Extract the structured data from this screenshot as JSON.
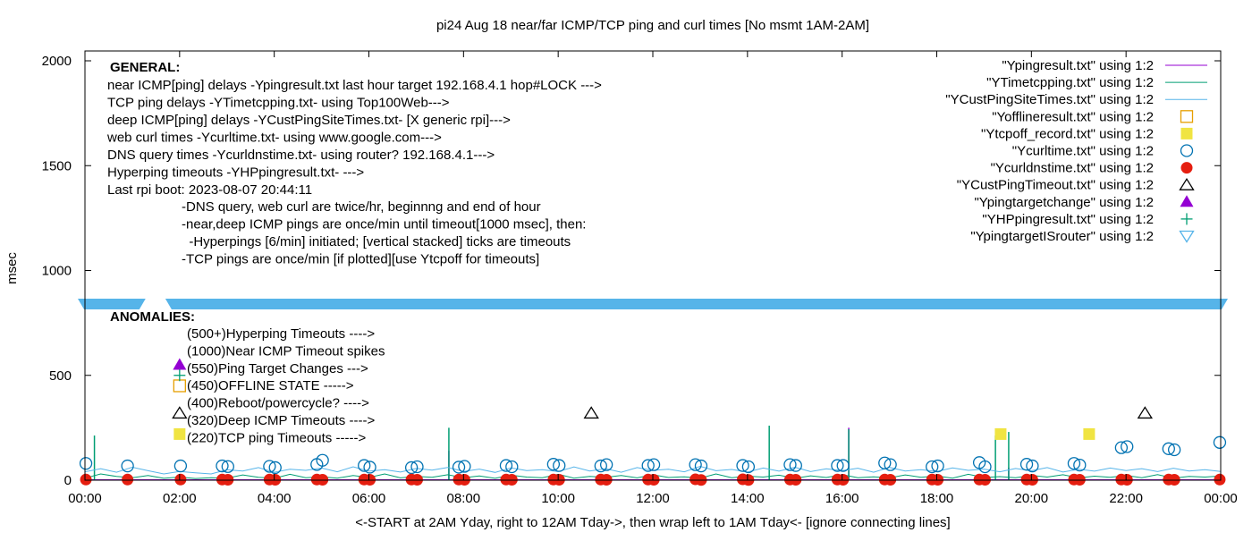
{
  "chart_data": {
    "type": "line",
    "title": "pi24 Aug 18  near/far ICMP/TCP ping and curl times [No msmt 1AM-2AM]",
    "xlabel": "<-START at 2AM Yday, right to 12AM Tday->, then wrap left to 1AM Tday<- [ignore connecting lines]",
    "ylabel": "msec",
    "xlim_hours": [
      0,
      24
    ],
    "ylim": [
      0,
      2050
    ],
    "x_tick_labels": [
      "00:00",
      "02:00",
      "04:00",
      "06:00",
      "08:00",
      "10:00",
      "12:00",
      "14:00",
      "16:00",
      "18:00",
      "20:00",
      "22:00",
      "00:00"
    ],
    "y_ticks": [
      0,
      500,
      1000,
      1500,
      2000
    ],
    "legend_placement": "top-right",
    "general_block": {
      "heading": "GENERAL:",
      "lines": [
        "near ICMP[ping] delays -Ypingresult.txt last hour target 192.168.4.1 hop#LOCK --->",
        "TCP ping delays -YTimetcpping.txt- using Top100Web--->",
        "deep ICMP[ping] delays -YCustPingSiteTimes.txt- [X generic rpi]--->",
        "web curl times -Ycurltime.txt- using www.google.com--->",
        "DNS query times -Ycurldnstime.txt- using router? 192.168.4.1--->",
        "Hyperping timeouts -YHPpingresult.txt- --->",
        "Last rpi boot: 2023-08-07 20:44:11"
      ],
      "notes": [
        "-DNS query, web curl are twice/hr, beginnng and end of hour",
        "-near,deep ICMP pings are once/min until timeout[1000 msec], then:",
        "  -Hyperpings [6/min] initiated; [vertical stacked] ticks are timeouts",
        "-TCP pings are once/min [if plotted][use Ytcpoff for timeouts]"
      ]
    },
    "anomalies_block": {
      "heading": "ANOMALIES:",
      "lines": [
        "(500+)Hyperping Timeouts ---->",
        "(1000)Near ICMP Timeout spikes",
        "(550)Ping Target Changes --->",
        "(450)OFFLINE STATE ----->",
        "(400)Reboot/powercycle? ---->",
        "(320)Deep ICMP Timeouts ---->",
        "(220)TCP ping Timeouts ----->"
      ]
    },
    "series": [
      {
        "name": "\"Ypingresult.txt\" using 1:2",
        "style": "line",
        "color": "#9400d3",
        "base": 2,
        "spikes": [
          [
            7.69,
            140
          ],
          [
            16.14,
            250
          ],
          [
            19.52,
            60
          ]
        ]
      },
      {
        "name": "\"YTimetcpping.txt\" using 1:2",
        "style": "line",
        "color": "#009e73",
        "values_every_20min": [
          10,
          30,
          18,
          12,
          22,
          9,
          15,
          8,
          12,
          10,
          25,
          14,
          9,
          28,
          12,
          16,
          10,
          22,
          13,
          30,
          11,
          18,
          14,
          26,
          12,
          20,
          9,
          24,
          15,
          12,
          28,
          10,
          18,
          14,
          22,
          11,
          26,
          13,
          16,
          10,
          30,
          12,
          19,
          15,
          24,
          9,
          21,
          13,
          27,
          12,
          16,
          11,
          25,
          14,
          20,
          10,
          28,
          13,
          17,
          12,
          23,
          15,
          26,
          11,
          19,
          14,
          22,
          12,
          27,
          10,
          18,
          15,
          20
        ],
        "spikes": [
          [
            0.2,
            213
          ],
          [
            7.69,
            250
          ],
          [
            14.46,
            260
          ],
          [
            16.14,
            243
          ],
          [
            19.24,
            213
          ],
          [
            19.52,
            230
          ]
        ]
      },
      {
        "name": "\"YCustPingSiteTimes.txt\" using 1:2",
        "style": "line",
        "color": "#56b4e9",
        "values_every_20min": [
          40,
          55,
          38,
          62,
          45,
          30,
          42,
          35,
          30,
          50,
          44,
          60,
          38,
          52,
          47,
          58,
          40,
          64,
          43,
          50,
          39,
          56,
          48,
          61,
          42,
          53,
          37,
          59,
          46,
          50,
          41,
          63,
          44,
          55,
          38,
          60,
          47,
          52,
          40,
          66,
          45,
          51,
          39,
          58,
          43,
          62,
          41,
          54,
          46,
          57,
          38,
          61,
          44,
          50,
          42,
          59,
          47,
          53,
          40,
          56,
          45,
          60,
          39,
          52,
          43,
          58,
          46,
          55,
          41,
          57,
          44,
          50,
          42
        ]
      },
      {
        "name": "\"Yofflineresult.txt\" using 1:2",
        "style": "open-square",
        "color": "#e69f00",
        "points": [
          [
            2.0,
            450
          ]
        ]
      },
      {
        "name": "\"Ytcpoff_record.txt\" using 1:2",
        "style": "filled-square",
        "color": "#f0e442",
        "points": [
          [
            2.0,
            220
          ],
          [
            19.35,
            220
          ],
          [
            21.22,
            220
          ]
        ]
      },
      {
        "name": "\"Ycurltime.txt\" using 1:2",
        "style": "open-circle",
        "color": "#0072b2",
        "points": [
          [
            0.02,
            80
          ],
          [
            0.9,
            68
          ],
          [
            2.02,
            68
          ],
          [
            2.9,
            68
          ],
          [
            3.02,
            65
          ],
          [
            3.9,
            66
          ],
          [
            4.02,
            60
          ],
          [
            4.9,
            75
          ],
          [
            5.02,
            95
          ],
          [
            5.9,
            70
          ],
          [
            6.02,
            62
          ],
          [
            6.9,
            60
          ],
          [
            7.02,
            64
          ],
          [
            7.9,
            62
          ],
          [
            8.02,
            66
          ],
          [
            8.9,
            70
          ],
          [
            9.02,
            64
          ],
          [
            9.9,
            76
          ],
          [
            10.02,
            70
          ],
          [
            10.9,
            68
          ],
          [
            11.02,
            74
          ],
          [
            11.9,
            70
          ],
          [
            12.02,
            74
          ],
          [
            12.9,
            74
          ],
          [
            13.02,
            68
          ],
          [
            13.9,
            70
          ],
          [
            14.02,
            64
          ],
          [
            14.9,
            74
          ],
          [
            15.02,
            70
          ],
          [
            15.9,
            70
          ],
          [
            16.02,
            70
          ],
          [
            16.9,
            82
          ],
          [
            17.02,
            74
          ],
          [
            17.9,
            64
          ],
          [
            18.02,
            68
          ],
          [
            18.9,
            84
          ],
          [
            19.02,
            64
          ],
          [
            19.9,
            76
          ],
          [
            20.02,
            68
          ],
          [
            20.9,
            80
          ],
          [
            21.02,
            72
          ],
          [
            21.9,
            155
          ],
          [
            22.02,
            160
          ],
          [
            22.9,
            150
          ],
          [
            23.02,
            145
          ],
          [
            23.98,
            180
          ]
        ]
      },
      {
        "name": "\"Ycurldnstime.txt\" using 1:2",
        "style": "filled-circle",
        "color": "#e51e10",
        "points": [
          [
            0.02,
            3
          ],
          [
            0.9,
            3
          ],
          [
            2.02,
            3
          ],
          [
            2.9,
            3
          ],
          [
            3.02,
            2
          ],
          [
            3.9,
            3
          ],
          [
            4.02,
            2
          ],
          [
            4.9,
            3
          ],
          [
            5.02,
            2
          ],
          [
            5.9,
            3
          ],
          [
            6.02,
            2
          ],
          [
            6.9,
            3
          ],
          [
            7.02,
            2
          ],
          [
            7.9,
            3
          ],
          [
            8.02,
            2
          ],
          [
            8.9,
            3
          ],
          [
            9.02,
            2
          ],
          [
            9.9,
            3
          ],
          [
            10.02,
            2
          ],
          [
            10.9,
            3
          ],
          [
            11.02,
            2
          ],
          [
            11.9,
            3
          ],
          [
            12.02,
            2
          ],
          [
            12.9,
            4
          ],
          [
            13.02,
            1
          ],
          [
            13.9,
            4
          ],
          [
            14.02,
            1
          ],
          [
            14.9,
            3
          ],
          [
            15.02,
            2
          ],
          [
            15.9,
            3
          ],
          [
            16.02,
            2
          ],
          [
            16.9,
            3
          ],
          [
            17.02,
            2
          ],
          [
            17.9,
            3
          ],
          [
            18.02,
            2
          ],
          [
            18.9,
            3
          ],
          [
            19.02,
            2
          ],
          [
            19.9,
            3
          ],
          [
            20.02,
            2
          ],
          [
            20.9,
            3
          ],
          [
            21.02,
            2
          ],
          [
            21.9,
            3
          ],
          [
            22.02,
            2
          ],
          [
            22.9,
            3
          ],
          [
            23.02,
            2
          ],
          [
            23.98,
            3
          ]
        ]
      },
      {
        "name": "\"YCustPingTimeout.txt\" using 1:2",
        "style": "open-triangle",
        "color": "#000000",
        "points": [
          [
            2.0,
            320
          ],
          [
            10.7,
            320
          ],
          [
            22.4,
            320
          ]
        ]
      },
      {
        "name": "\"Ypingtargetchange\" using 1:2",
        "style": "filled-triangle",
        "color": "#9400d3",
        "points": [
          [
            2.0,
            550
          ]
        ]
      },
      {
        "name": "\"YHPpingresult.txt\" using 1:2",
        "style": "plus",
        "color": "#009e73",
        "points": [
          [
            2.0,
            500
          ]
        ]
      },
      {
        "name": "\"YpingtargetISrouter\" using 1:2",
        "style": "open-triangle-down",
        "color": "#56b4e9",
        "value": 840,
        "ranges_hours": [
          [
            0,
            1.13
          ],
          [
            1.85,
            24
          ]
        ]
      }
    ]
  }
}
